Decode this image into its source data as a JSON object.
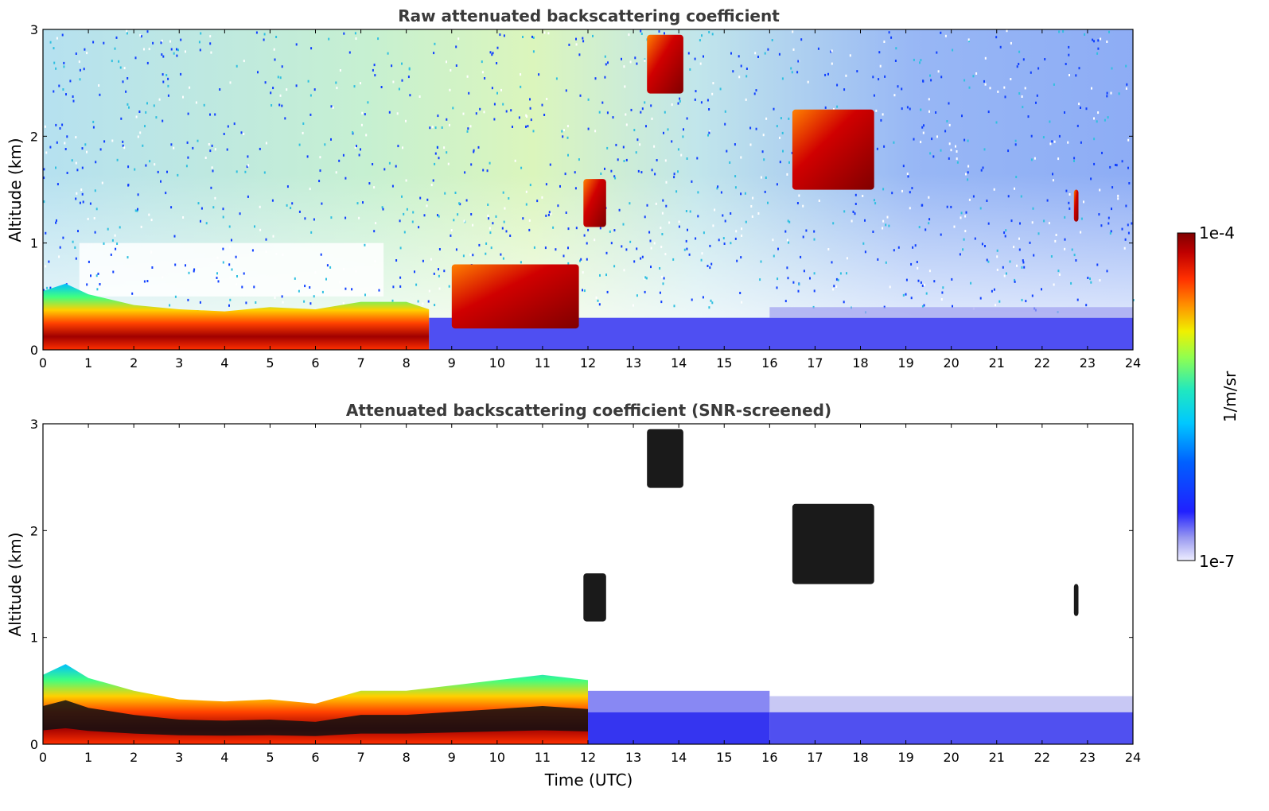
{
  "chart_data": [
    {
      "type": "heatmap",
      "title": "Raw attenuated backscattering coefficient",
      "xlabel": "",
      "ylabel": "Altitude (km)",
      "xlim": [
        0,
        24
      ],
      "ylim": [
        0,
        3
      ],
      "xticks": [
        "0",
        "1",
        "2",
        "3",
        "4",
        "5",
        "6",
        "7",
        "8",
        "9",
        "10",
        "11",
        "12",
        "13",
        "14",
        "15",
        "16",
        "17",
        "18",
        "19",
        "20",
        "21",
        "22",
        "23",
        "24"
      ],
      "yticks": [
        "0",
        "1",
        "2",
        "3"
      ],
      "features": {
        "boundary_layer": [
          [
            0,
            0.55
          ],
          [
            0.5,
            0.62
          ],
          [
            1,
            0.52
          ],
          [
            2,
            0.42
          ],
          [
            3,
            0.38
          ],
          [
            4,
            0.36
          ],
          [
            5,
            0.4
          ],
          [
            6,
            0.38
          ],
          [
            7,
            0.45
          ],
          [
            8,
            0.45
          ],
          [
            8.5,
            0.38
          ]
        ],
        "clouds": [
          {
            "x": [
              11.9,
              12.4
            ],
            "y": [
              1.15,
              1.6
            ]
          },
          {
            "x": [
              13.3,
              14.1
            ],
            "y": [
              2.4,
              2.95
            ]
          },
          {
            "x": [
              16.5,
              18.3
            ],
            "y": [
              1.5,
              2.25
            ]
          },
          {
            "x": [
              22.7,
              22.8
            ],
            "y": [
              1.2,
              1.5
            ]
          },
          {
            "x": [
              9.0,
              11.8
            ],
            "y": [
              0.2,
              0.8
            ]
          }
        ]
      }
    },
    {
      "type": "heatmap",
      "title": "Attenuated backscattering coefficient (SNR-screened)",
      "xlabel": "Time (UTC)",
      "ylabel": "Altitude (km)",
      "xlim": [
        0,
        24
      ],
      "ylim": [
        0,
        3
      ],
      "xticks": [
        "0",
        "1",
        "2",
        "3",
        "4",
        "5",
        "6",
        "7",
        "8",
        "9",
        "10",
        "11",
        "12",
        "13",
        "14",
        "15",
        "16",
        "17",
        "18",
        "19",
        "20",
        "21",
        "22",
        "23",
        "24"
      ],
      "yticks": [
        "0",
        "1",
        "2",
        "3"
      ],
      "features": {
        "boundary_layer": [
          [
            0,
            0.65
          ],
          [
            0.5,
            0.75
          ],
          [
            1,
            0.62
          ],
          [
            2,
            0.5
          ],
          [
            3,
            0.42
          ],
          [
            4,
            0.4
          ],
          [
            5,
            0.42
          ],
          [
            6,
            0.38
          ],
          [
            7,
            0.5
          ],
          [
            8,
            0.5
          ],
          [
            9,
            0.55
          ],
          [
            10,
            0.6
          ],
          [
            11,
            0.65
          ],
          [
            12,
            0.6
          ]
        ],
        "clouds": [
          {
            "x": [
              11.9,
              12.4
            ],
            "y": [
              1.15,
              1.6
            ]
          },
          {
            "x": [
              13.3,
              14.1
            ],
            "y": [
              2.4,
              2.95
            ]
          },
          {
            "x": [
              16.5,
              18.3
            ],
            "y": [
              1.5,
              2.25
            ]
          },
          {
            "x": [
              22.7,
              22.8
            ],
            "y": [
              1.2,
              1.5
            ]
          }
        ]
      }
    }
  ],
  "colorbar": {
    "label": "1/m/sr",
    "max_label": "1e-4",
    "min_label": "1e-7",
    "colors": [
      "#eeeeff",
      "#b8b8f0",
      "#7878ee",
      "#2020ff",
      "#0050ff",
      "#00a0ff",
      "#00e0e0",
      "#40ff90",
      "#c0ff30",
      "#ffe000",
      "#ff8000",
      "#ff2000",
      "#c00000",
      "#800000"
    ]
  }
}
